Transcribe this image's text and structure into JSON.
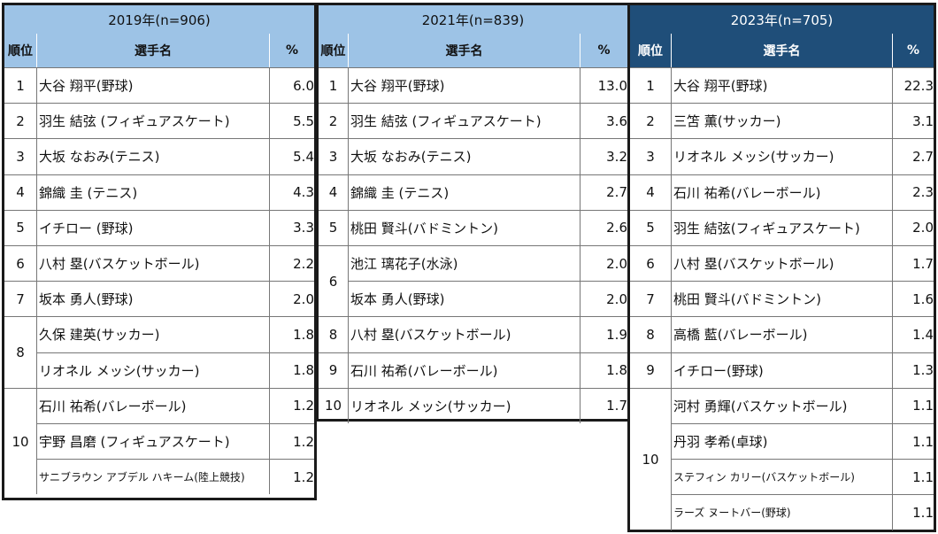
{
  "headers": {
    "rank": "順位",
    "name": "選手名",
    "pct": "%"
  },
  "colors": {
    "light_header": "#9dc3e6",
    "dark_header": "#1f4e79"
  },
  "tables": [
    {
      "title": "2019年(n=906)",
      "rows": [
        {
          "rank": "1",
          "name": "大谷 翔平(野球)",
          "pct": "6.0"
        },
        {
          "rank": "2",
          "name": "羽生 結弦 (フィギュアスケート)",
          "pct": "5.5"
        },
        {
          "rank": "3",
          "name": "大坂 なおみ(テニス)",
          "pct": "5.4"
        },
        {
          "rank": "4",
          "name": "錦織 圭 (テニス)",
          "pct": "4.3"
        },
        {
          "rank": "5",
          "name": "イチロー (野球)",
          "pct": "3.3"
        },
        {
          "rank": "6",
          "name": "八村 塁(バスケットボール)",
          "pct": "2.2"
        },
        {
          "rank": "7",
          "name": "坂本 勇人(野球)",
          "pct": "2.0"
        },
        {
          "rank": "8",
          "name": "久保 建英(サッカー)",
          "pct": "1.8"
        },
        {
          "rank": "",
          "name": "リオネル メッシ(サッカー)",
          "pct": "1.8"
        },
        {
          "rank": "10",
          "name": "石川 祐希(バレーボール)",
          "pct": "1.2"
        },
        {
          "rank": "",
          "name": "宇野 昌磨 (フィギュアスケート)",
          "pct": "1.2"
        },
        {
          "rank": "",
          "name": "サニブラウン アブデル ハキーム(陸上競技)",
          "pct": "1.2"
        }
      ]
    },
    {
      "title": "2021年(n=839)",
      "rows": [
        {
          "rank": "1",
          "name": "大谷 翔平(野球)",
          "pct": "13.0"
        },
        {
          "rank": "2",
          "name": "羽生 結弦 (フィギュアスケート)",
          "pct": "3.6"
        },
        {
          "rank": "3",
          "name": "大坂 なおみ(テニス)",
          "pct": "3.2"
        },
        {
          "rank": "4",
          "name": "錦織 圭 (テニス)",
          "pct": "2.7"
        },
        {
          "rank": "5",
          "name": "桃田 賢斗(バドミントン)",
          "pct": "2.6"
        },
        {
          "rank": "6",
          "name": "池江 璃花子(水泳)",
          "pct": "2.0"
        },
        {
          "rank": "",
          "name": "坂本 勇人(野球)",
          "pct": "2.0"
        },
        {
          "rank": "8",
          "name": "八村 塁(バスケットボール)",
          "pct": "1.9"
        },
        {
          "rank": "9",
          "name": "石川 祐希(バレーボール)",
          "pct": "1.8"
        },
        {
          "rank": "10",
          "name": "リオネル メッシ(サッカー)",
          "pct": "1.7"
        }
      ]
    },
    {
      "title": "2023年(n=705)",
      "rows": [
        {
          "rank": "1",
          "name": "大谷 翔平(野球)",
          "pct": "22.3"
        },
        {
          "rank": "2",
          "name": "三笘 薫(サッカー)",
          "pct": "3.1"
        },
        {
          "rank": "3",
          "name": "リオネル メッシ(サッカー)",
          "pct": "2.7"
        },
        {
          "rank": "4",
          "name": "石川 祐希(バレーボール)",
          "pct": "2.3"
        },
        {
          "rank": "5",
          "name": "羽生 結弦(フィギュアスケート)",
          "pct": "2.0"
        },
        {
          "rank": "6",
          "name": "八村 塁(バスケットボール)",
          "pct": "1.7"
        },
        {
          "rank": "7",
          "name": "桃田 賢斗(バドミントン)",
          "pct": "1.6"
        },
        {
          "rank": "8",
          "name": "高橋 藍(バレーボール)",
          "pct": "1.4"
        },
        {
          "rank": "9",
          "name": "イチロー(野球)",
          "pct": "1.3"
        },
        {
          "rank": "10",
          "name": "河村 勇輝(バスケットボール)",
          "pct": "1.1"
        },
        {
          "rank": "",
          "name": "丹羽 孝希(卓球)",
          "pct": "1.1"
        },
        {
          "rank": "",
          "name": "ステフィン カリー(バスケットボール)",
          "pct": "1.1"
        },
        {
          "rank": "",
          "name": "ラーズ ヌートバー(野球)",
          "pct": "1.1"
        }
      ]
    }
  ]
}
